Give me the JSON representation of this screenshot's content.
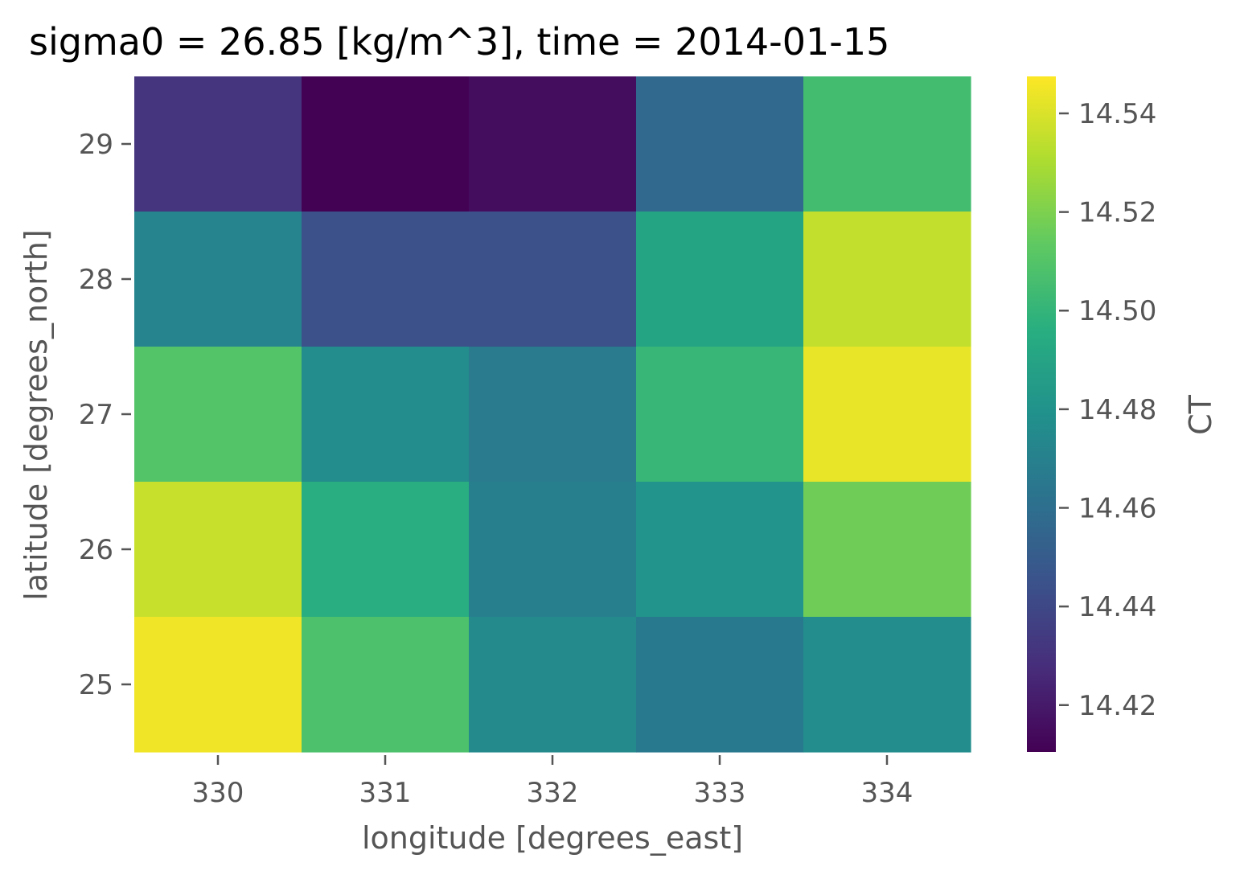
{
  "chart_data": {
    "type": "heatmap",
    "title": "sigma0 = 26.85 [kg/m^3], time = 2014-01-15",
    "xlabel": "longitude [degrees_east]",
    "ylabel": "latitude [degrees_north]",
    "colorbar_label": "CT",
    "colormap": "viridis",
    "x": [
      330,
      331,
      332,
      333,
      334
    ],
    "y": [
      29,
      28,
      27,
      26,
      25
    ],
    "x_tick_labels": [
      "330",
      "331",
      "332",
      "333",
      "334"
    ],
    "y_tick_labels": [
      "29",
      "28",
      "27",
      "26",
      "25"
    ],
    "values": [
      [
        14.431,
        14.411,
        14.415,
        14.457,
        14.505
      ],
      [
        14.472,
        14.444,
        14.444,
        14.49,
        14.535
      ],
      [
        14.51,
        14.476,
        14.467,
        14.501,
        14.543
      ],
      [
        14.536,
        14.496,
        14.469,
        14.481,
        14.517
      ],
      [
        14.545,
        14.508,
        14.475,
        14.466,
        14.477
      ]
    ],
    "vmin": 14.4105,
    "vmax": 14.5475,
    "colorbar_ticks": [
      "14.42",
      "14.44",
      "14.46",
      "14.48",
      "14.50",
      "14.52",
      "14.54"
    ],
    "colorbar_tick_values": [
      14.42,
      14.44,
      14.46,
      14.48,
      14.5,
      14.52,
      14.54
    ],
    "grid": false,
    "legend": "colorbar right"
  }
}
